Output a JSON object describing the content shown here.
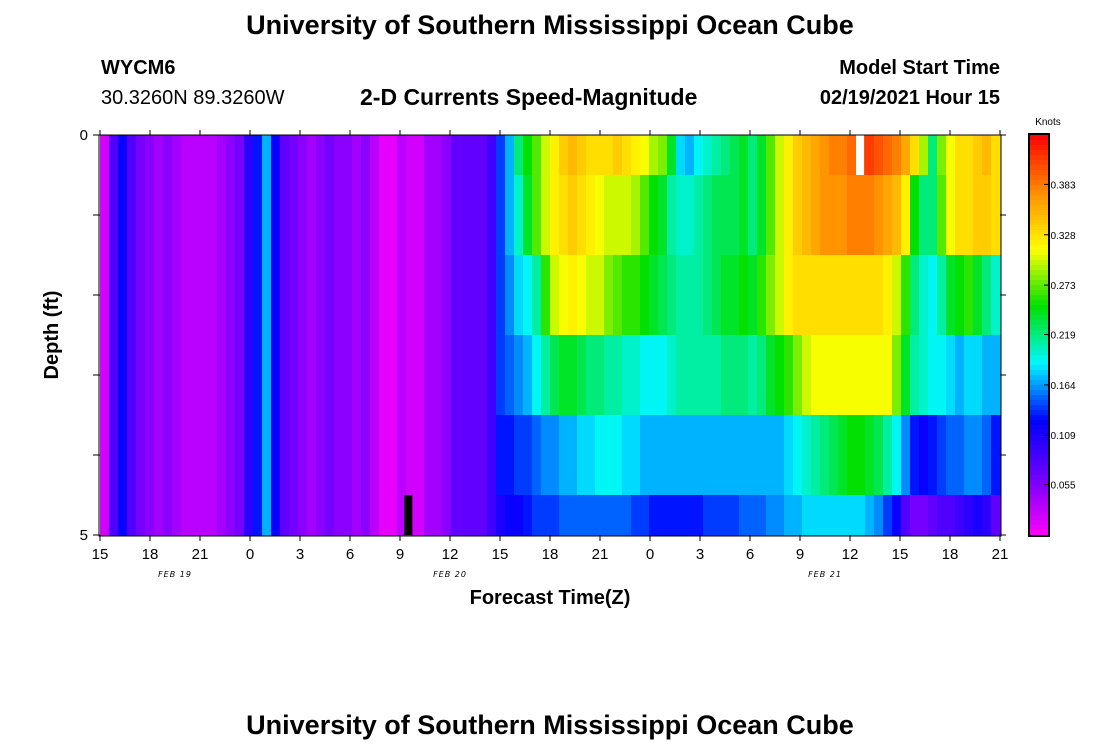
{
  "header": {
    "title": "University of Southern Mississippi Ocean Cube",
    "station_id": "WYCM6",
    "coords": "30.3260N 89.3260W",
    "plot_title": "2-D Currents Speed-Magnitude",
    "model_start_label": "Model Start Time",
    "model_start_value": "02/19/2021 Hour 15"
  },
  "footer": {
    "title": "University of Southern Mississippi Ocean Cube"
  },
  "colors": {
    "scale": [
      "#ff00ff",
      "#6f00ff",
      "#0000ff",
      "#00f7ff",
      "#00e000",
      "#ffff00",
      "#ff8c00",
      "#ff0000"
    ],
    "no_data_white": "#ffffff",
    "no_data_black": "#000000"
  },
  "chart_data": {
    "type": "heatmap",
    "xlabel": "Forecast Time(Z)",
    "ylabel": "Depth (ft)",
    "x_tick_labels": [
      "15",
      "18",
      "21",
      "0",
      "3",
      "6",
      "9",
      "12",
      "15",
      "18",
      "21",
      "0",
      "3",
      "6",
      "9",
      "12",
      "15",
      "18",
      "21"
    ],
    "x_tick_hours": [
      0,
      3,
      6,
      9,
      12,
      15,
      18,
      21,
      24,
      27,
      30,
      33,
      36,
      39,
      42,
      45,
      48,
      51,
      54
    ],
    "date_labels": [
      {
        "text": "FEB 19",
        "hour": 4.5
      },
      {
        "text": "FEB 20",
        "hour": 21
      },
      {
        "text": "FEB 21",
        "hour": 43.5
      }
    ],
    "y_tick_labels": [
      "0",
      "5"
    ],
    "ylim": [
      0,
      5
    ],
    "xlim": [
      0,
      54
    ],
    "colorbar": {
      "label": "Knots",
      "ticks": [
        "0.055",
        "0.109",
        "0.164",
        "0.219",
        "0.273",
        "0.328",
        "0.383"
      ],
      "tick_values": [
        0.055,
        0.109,
        0.164,
        0.219,
        0.273,
        0.328,
        0.383
      ],
      "range": [
        0,
        0.437
      ]
    },
    "depth_layers": [
      {
        "depth": 0.25,
        "speeds": [
          0.02,
          0.08,
          0.12,
          0.08,
          0.06,
          0.05,
          0.04,
          0.05,
          0.04,
          0.03,
          0.03,
          0.03,
          0.03,
          0.04,
          0.05,
          0.06,
          0.1,
          0.13,
          0.17,
          0.12,
          0.07,
          0.06,
          0.05,
          0.04,
          0.05,
          0.06,
          0.05,
          0.05,
          0.04,
          0.05,
          0.03,
          0.01,
          0.01,
          0.03,
          0.02,
          0.02,
          0.04,
          0.04,
          0.05,
          0.07,
          0.07,
          0.07,
          0.07,
          0.09,
          0.14,
          0.17,
          0.22,
          0.25,
          0.27,
          0.3,
          0.32,
          0.34,
          0.35,
          0.34,
          0.33,
          0.33,
          0.33,
          0.34,
          0.33,
          0.32,
          0.31,
          0.29,
          0.28,
          0.24,
          0.18,
          0.17,
          0.19,
          0.2,
          0.21,
          0.22,
          0.23,
          0.24,
          0.22,
          0.24,
          0.27,
          0.3,
          0.32,
          0.34,
          0.35,
          0.36,
          0.37,
          0.38,
          0.38,
          0.39,
          0.4,
          0.41,
          0.4,
          0.39,
          0.38,
          0.36,
          0.33,
          0.29,
          0.22,
          0.28,
          0.31,
          0.33,
          0.33,
          0.34,
          0.35,
          0.33
        ]
      },
      {
        "depth": 1.0,
        "speeds": [
          0.02,
          0.08,
          0.12,
          0.08,
          0.06,
          0.05,
          0.04,
          0.05,
          0.04,
          0.03,
          0.03,
          0.03,
          0.03,
          0.04,
          0.05,
          0.06,
          0.1,
          0.13,
          0.17,
          0.12,
          0.07,
          0.06,
          0.05,
          0.04,
          0.05,
          0.06,
          0.05,
          0.05,
          0.04,
          0.05,
          0.03,
          0.01,
          0.01,
          0.03,
          0.02,
          0.02,
          0.04,
          0.04,
          0.05,
          0.07,
          0.07,
          0.07,
          0.07,
          0.09,
          0.14,
          0.17,
          0.2,
          0.24,
          0.27,
          0.3,
          0.32,
          0.33,
          0.34,
          0.33,
          0.32,
          0.31,
          0.3,
          0.3,
          0.3,
          0.29,
          0.27,
          0.25,
          0.24,
          0.21,
          0.2,
          0.2,
          0.21,
          0.22,
          0.23,
          0.23,
          0.23,
          0.24,
          0.22,
          0.24,
          0.27,
          0.3,
          0.32,
          0.34,
          0.35,
          0.36,
          0.37,
          0.37,
          0.37,
          0.38,
          0.38,
          0.38,
          0.37,
          0.36,
          0.35,
          0.32,
          0.25,
          0.22,
          0.22,
          0.27,
          0.31,
          0.33,
          0.33,
          0.34,
          0.34,
          0.33
        ]
      },
      {
        "depth": 2.0,
        "speeds": [
          0.02,
          0.08,
          0.12,
          0.08,
          0.06,
          0.05,
          0.04,
          0.05,
          0.04,
          0.03,
          0.03,
          0.03,
          0.03,
          0.04,
          0.05,
          0.06,
          0.1,
          0.13,
          0.17,
          0.12,
          0.07,
          0.06,
          0.05,
          0.04,
          0.05,
          0.06,
          0.05,
          0.05,
          0.04,
          0.05,
          0.03,
          0.01,
          0.01,
          0.03,
          0.02,
          0.02,
          0.04,
          0.04,
          0.05,
          0.07,
          0.07,
          0.07,
          0.07,
          0.09,
          0.14,
          0.16,
          0.18,
          0.19,
          0.21,
          0.26,
          0.3,
          0.31,
          0.32,
          0.31,
          0.3,
          0.3,
          0.28,
          0.27,
          0.26,
          0.26,
          0.25,
          0.24,
          0.23,
          0.22,
          0.21,
          0.21,
          0.21,
          0.22,
          0.23,
          0.24,
          0.24,
          0.25,
          0.24,
          0.26,
          0.28,
          0.3,
          0.32,
          0.33,
          0.33,
          0.33,
          0.33,
          0.33,
          0.33,
          0.33,
          0.33,
          0.33,
          0.33,
          0.32,
          0.3,
          0.26,
          0.22,
          0.2,
          0.19,
          0.21,
          0.24,
          0.25,
          0.26,
          0.24,
          0.22,
          0.2
        ]
      },
      {
        "depth": 3.0,
        "speeds": [
          0.02,
          0.08,
          0.12,
          0.08,
          0.06,
          0.05,
          0.04,
          0.05,
          0.04,
          0.03,
          0.03,
          0.03,
          0.03,
          0.04,
          0.05,
          0.06,
          0.1,
          0.13,
          0.17,
          0.12,
          0.07,
          0.06,
          0.05,
          0.04,
          0.05,
          0.06,
          0.05,
          0.05,
          0.04,
          0.05,
          0.03,
          0.01,
          0.01,
          0.03,
          0.02,
          0.02,
          0.04,
          0.04,
          0.05,
          0.07,
          0.07,
          0.07,
          0.07,
          0.09,
          0.14,
          0.15,
          0.16,
          0.17,
          0.19,
          0.21,
          0.23,
          0.24,
          0.24,
          0.23,
          0.22,
          0.22,
          0.21,
          0.21,
          0.2,
          0.2,
          0.19,
          0.19,
          0.19,
          0.2,
          0.21,
          0.21,
          0.21,
          0.21,
          0.21,
          0.22,
          0.22,
          0.22,
          0.21,
          0.22,
          0.24,
          0.25,
          0.26,
          0.28,
          0.3,
          0.31,
          0.31,
          0.31,
          0.31,
          0.31,
          0.31,
          0.31,
          0.31,
          0.31,
          0.28,
          0.24,
          0.21,
          0.2,
          0.19,
          0.19,
          0.18,
          0.17,
          0.18,
          0.18,
          0.17,
          0.17
        ]
      },
      {
        "depth": 4.0,
        "speeds": [
          0.02,
          0.08,
          0.12,
          0.08,
          0.06,
          0.05,
          0.04,
          0.05,
          0.04,
          0.03,
          0.03,
          0.03,
          0.03,
          0.04,
          0.05,
          0.06,
          0.1,
          0.13,
          0.17,
          0.12,
          0.07,
          0.06,
          0.05,
          0.04,
          0.05,
          0.06,
          0.05,
          0.05,
          0.04,
          0.05,
          0.03,
          0.01,
          0.01,
          0.03,
          0.02,
          0.02,
          0.04,
          0.04,
          0.05,
          0.07,
          0.07,
          0.07,
          0.07,
          0.09,
          0.13,
          0.13,
          0.14,
          0.14,
          0.15,
          0.16,
          0.16,
          0.17,
          0.17,
          0.18,
          0.18,
          0.19,
          0.19,
          0.19,
          0.18,
          0.18,
          0.17,
          0.17,
          0.17,
          0.17,
          0.17,
          0.17,
          0.17,
          0.17,
          0.17,
          0.17,
          0.17,
          0.17,
          0.17,
          0.17,
          0.17,
          0.17,
          0.18,
          0.19,
          0.2,
          0.21,
          0.22,
          0.23,
          0.24,
          0.25,
          0.25,
          0.24,
          0.23,
          0.21,
          0.19,
          0.16,
          0.13,
          0.12,
          0.13,
          0.14,
          0.15,
          0.15,
          0.16,
          0.16,
          0.15,
          0.13
        ]
      },
      {
        "depth": 4.75,
        "speeds": [
          0.02,
          0.08,
          0.12,
          0.08,
          0.06,
          0.05,
          0.04,
          0.05,
          0.04,
          0.03,
          0.03,
          0.03,
          0.03,
          0.04,
          0.05,
          0.06,
          0.1,
          0.13,
          0.17,
          0.12,
          0.07,
          0.06,
          0.05,
          0.04,
          0.05,
          0.06,
          0.05,
          0.05,
          0.04,
          0.05,
          0.03,
          0.01,
          0.01,
          0.03,
          0.02,
          0.02,
          0.04,
          0.04,
          0.05,
          0.07,
          0.07,
          0.07,
          0.07,
          0.09,
          0.11,
          0.12,
          0.12,
          0.13,
          0.14,
          0.14,
          0.14,
          0.15,
          0.15,
          0.15,
          0.15,
          0.15,
          0.15,
          0.15,
          0.15,
          0.14,
          0.14,
          0.13,
          0.13,
          0.13,
          0.13,
          0.13,
          0.13,
          0.14,
          0.14,
          0.14,
          0.14,
          0.15,
          0.15,
          0.15,
          0.16,
          0.16,
          0.17,
          0.17,
          0.18,
          0.18,
          0.18,
          0.18,
          0.18,
          0.18,
          0.18,
          0.17,
          0.16,
          0.14,
          0.12,
          0.08,
          0.06,
          0.06,
          0.07,
          0.08,
          0.08,
          0.09,
          0.1,
          0.11,
          0.1,
          0.07
        ]
      }
    ],
    "missing_cells": [
      {
        "label": "no-data-white",
        "hour": 45.6,
        "depth_range": [
          0,
          0.5
        ],
        "color": "white"
      },
      {
        "label": "no-data-black",
        "hour": 18.5,
        "depth_range": [
          4.5,
          5
        ],
        "color": "black"
      }
    ]
  }
}
